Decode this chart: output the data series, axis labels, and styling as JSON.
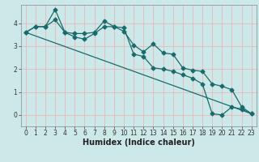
{
  "xlabel": "Humidex (Indice chaleur)",
  "bg_color": "#cce8e8",
  "grid_color": "#e8b8b8",
  "line_color": "#1a6b6b",
  "xlim": [
    -0.5,
    23.5
  ],
  "ylim": [
    -0.5,
    4.8
  ],
  "yticks": [
    0,
    1,
    2,
    3,
    4
  ],
  "xticks": [
    0,
    1,
    2,
    3,
    4,
    5,
    6,
    7,
    8,
    9,
    10,
    11,
    12,
    13,
    14,
    15,
    16,
    17,
    18,
    19,
    20,
    21,
    22,
    23
  ],
  "line1_x": [
    0,
    1,
    2,
    3,
    4,
    5,
    6,
    7,
    8,
    9,
    10,
    11,
    12,
    13,
    14,
    15,
    16,
    17,
    18,
    19,
    20,
    21,
    22,
    23
  ],
  "line1_y": [
    3.6,
    3.85,
    3.85,
    4.6,
    3.6,
    3.55,
    3.55,
    3.6,
    4.1,
    3.85,
    3.65,
    3.05,
    2.75,
    3.1,
    2.7,
    2.65,
    2.05,
    1.95,
    1.9,
    1.35,
    1.25,
    1.1,
    0.35,
    0.05
  ],
  "line2_x": [
    0,
    1,
    2,
    3,
    4,
    5,
    6,
    7,
    8,
    9,
    10,
    11,
    12,
    13,
    14,
    15,
    16,
    17,
    18,
    19,
    20,
    21,
    22,
    23
  ],
  "line2_y": [
    3.6,
    3.85,
    3.85,
    4.15,
    3.6,
    3.4,
    3.3,
    3.55,
    3.85,
    3.85,
    3.8,
    2.65,
    2.55,
    2.05,
    2.0,
    1.9,
    1.75,
    1.6,
    1.35,
    0.05,
    0.0,
    0.35,
    0.25,
    0.05
  ],
  "line3_x": [
    0,
    23
  ],
  "line3_y": [
    3.6,
    0.05
  ],
  "markersize": 2.5,
  "linewidth": 0.9,
  "tick_fontsize": 5.5,
  "label_fontsize": 7.0
}
